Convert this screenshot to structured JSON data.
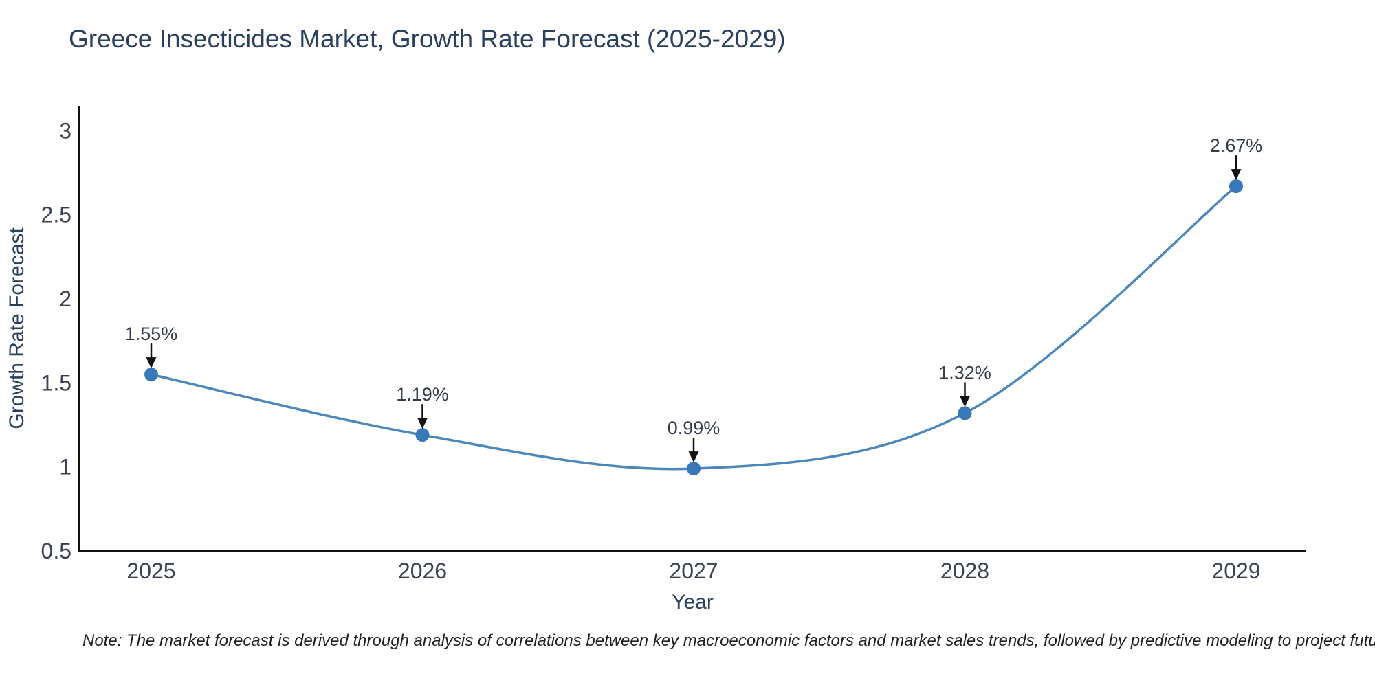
{
  "chart_data": {
    "type": "line",
    "title": "Greece Insecticides Market, Growth Rate Forecast (2025-2029)",
    "x": [
      "2025",
      "2026",
      "2027",
      "2028",
      "2029"
    ],
    "y": [
      1.55,
      1.19,
      0.99,
      1.32,
      2.67
    ],
    "point_labels": [
      "1.55%",
      "1.19%",
      "0.99%",
      "1.32%",
      "2.67%"
    ],
    "xlabel": "Year",
    "ylabel": "Growth Rate Forecast",
    "ylim": [
      0.5,
      3.15
    ],
    "yticks": [
      0.5,
      1,
      1.5,
      2,
      2.5,
      3
    ],
    "grid": false,
    "legend": "none",
    "line_shape": "spline",
    "colors": {
      "line": "#4c87bb",
      "marker": "#3878b8",
      "annotation_arrow": "#111111",
      "axis_line": "#111111",
      "axis_title_text": "#2a3f5f",
      "tick_text": "#3b4252",
      "annotation_text": "#343b4a"
    }
  },
  "note": "Note: The market forecast is derived through analysis of correlations between key macroeconomic factors and market sales trends, followed by predictive modeling to project future sales"
}
